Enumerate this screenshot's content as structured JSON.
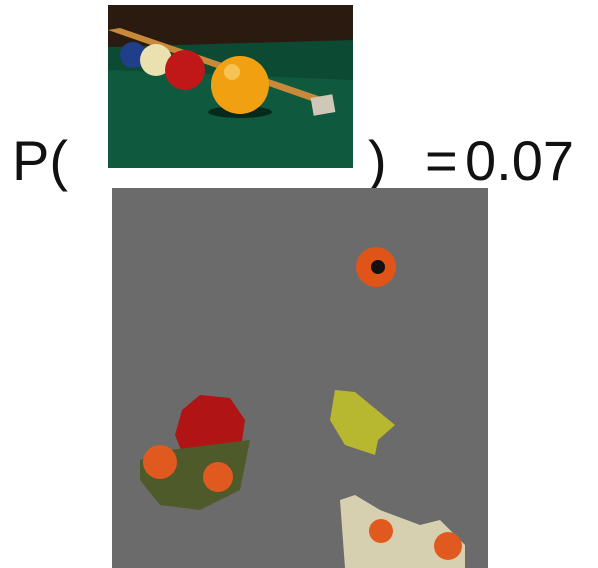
{
  "formula": {
    "open": "P(",
    "close": ")",
    "equals": "=",
    "probability": 0.07
  }
}
